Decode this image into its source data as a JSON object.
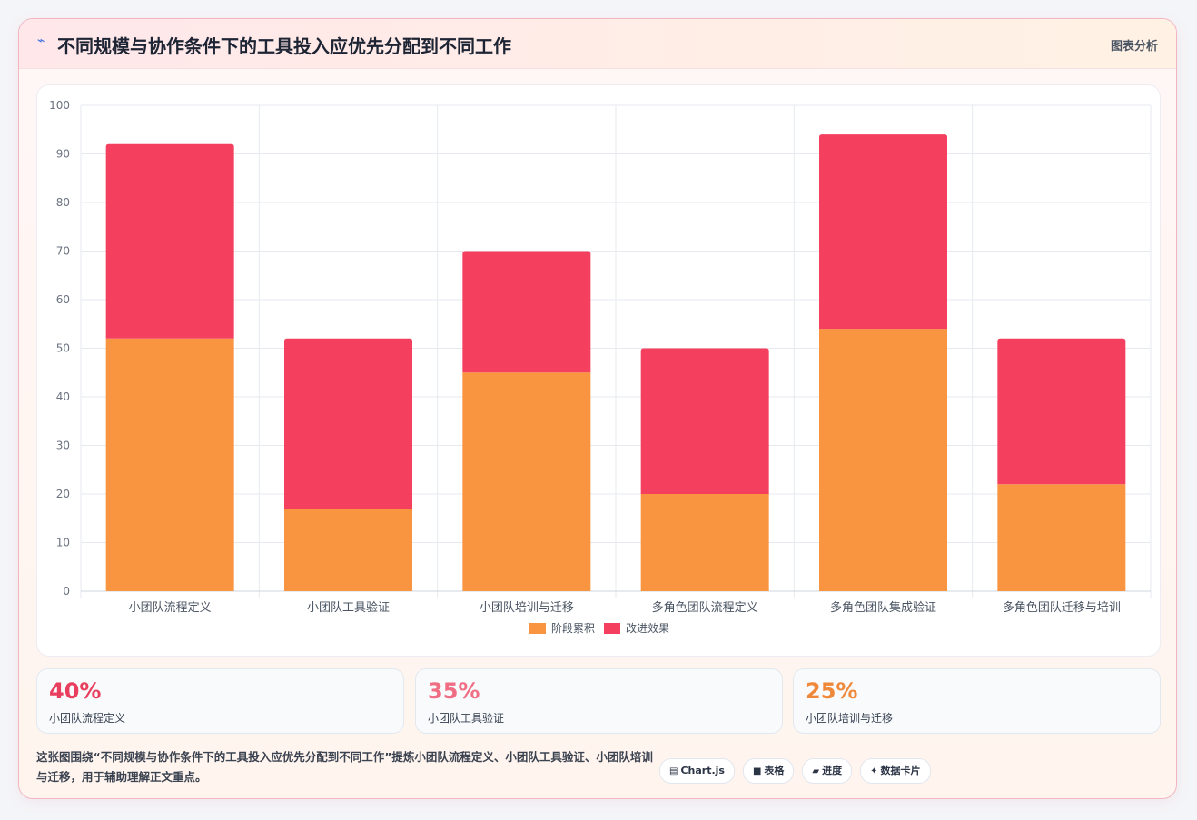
{
  "header": {
    "title": "不同规模与协作条件下的工具投入应优先分配到不同工作",
    "tag": "图表分析"
  },
  "colors": {
    "stage": "#f99540",
    "effect": "#f43f5e",
    "kpi": [
      "#e83f5e",
      "#f06e84",
      "#f0883a"
    ]
  },
  "chart_data": {
    "type": "bar",
    "stacked": true,
    "categories": [
      "小团队流程定义",
      "小团队工具验证",
      "小团队培训与迁移",
      "多角色团队流程定义",
      "多角色团队集成验证",
      "多角色团队迁移与培训"
    ],
    "series": [
      {
        "name": "阶段累积",
        "values": [
          52,
          17,
          45,
          20,
          54,
          22
        ]
      },
      {
        "name": "改进效果",
        "values": [
          40,
          35,
          25,
          30,
          40,
          30
        ]
      }
    ],
    "ylim": [
      0,
      100
    ],
    "yticks": [
      0,
      10,
      20,
      30,
      40,
      50,
      60,
      70,
      80,
      90,
      100
    ],
    "legend": "bottom-center",
    "grid": true
  },
  "kpis": [
    {
      "value": "40%",
      "label": "小团队流程定义"
    },
    {
      "value": "35%",
      "label": "小团队工具验证"
    },
    {
      "value": "25%",
      "label": "小团队培训与迁移"
    }
  ],
  "description": "这张图围绕“不同规模与协作条件下的工具投入应优先分配到不同工作”提炼小团队流程定义、小团队工具验证、小团队培训与迁移，用于辅助理解正文重点。",
  "tools": [
    {
      "icon": "chart-icon",
      "glyph": "▤",
      "label": "Chart.js"
    },
    {
      "icon": "table-icon",
      "glyph": "■",
      "label": "表格"
    },
    {
      "icon": "progress-icon",
      "glyph": "▰",
      "label": "进度"
    },
    {
      "icon": "sparkle-icon",
      "glyph": "✦",
      "label": "数据卡片"
    }
  ]
}
